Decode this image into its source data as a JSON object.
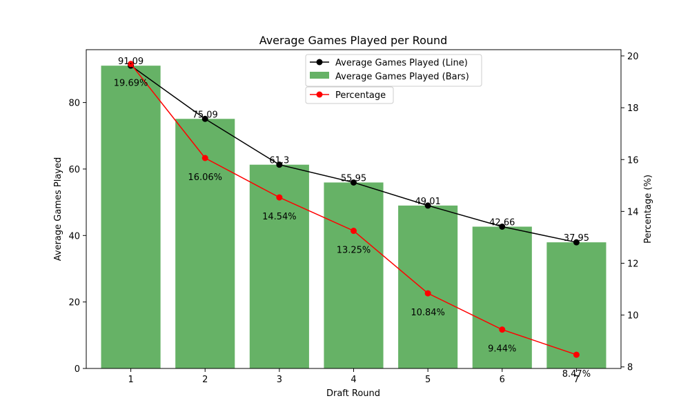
{
  "chart_data": {
    "type": "bar",
    "title": "Average Games Played per Round",
    "xlabel": "Draft Round",
    "ylabel": "Average Games Played",
    "y2label": "Percentage (%)",
    "categories": [
      "1",
      "2",
      "3",
      "4",
      "5",
      "6",
      "7"
    ],
    "ylim": [
      0,
      95.9
    ],
    "y2lim": [
      7.94,
      20.24
    ],
    "yticks": [
      0,
      20,
      40,
      60,
      80
    ],
    "y2ticks": [
      8,
      10,
      12,
      14,
      16,
      18,
      20
    ],
    "grid": false,
    "legend_position": "top-center",
    "series": [
      {
        "name": "Average Games Played (Bars)",
        "kind": "bar",
        "axis": "left",
        "color": "#66b266",
        "values": [
          91.09,
          75.09,
          61.3,
          55.95,
          49.01,
          42.66,
          37.95
        ],
        "labels": [
          "91.09",
          "75.09",
          "61.3",
          "55.95",
          "49.01",
          "42.66",
          "37.95"
        ]
      },
      {
        "name": "Average Games Played (Line)",
        "kind": "line",
        "axis": "left",
        "color": "#000000",
        "values": [
          91.09,
          75.09,
          61.3,
          55.95,
          49.01,
          42.66,
          37.95
        ]
      },
      {
        "name": "Percentage",
        "kind": "line",
        "axis": "right",
        "color": "#ff0000",
        "values": [
          19.69,
          16.06,
          14.54,
          13.25,
          10.84,
          9.44,
          8.47
        ],
        "labels": [
          "19.69%",
          "16.06%",
          "14.54%",
          "13.25%",
          "10.84%",
          "9.44%",
          "8.47%"
        ]
      }
    ]
  }
}
